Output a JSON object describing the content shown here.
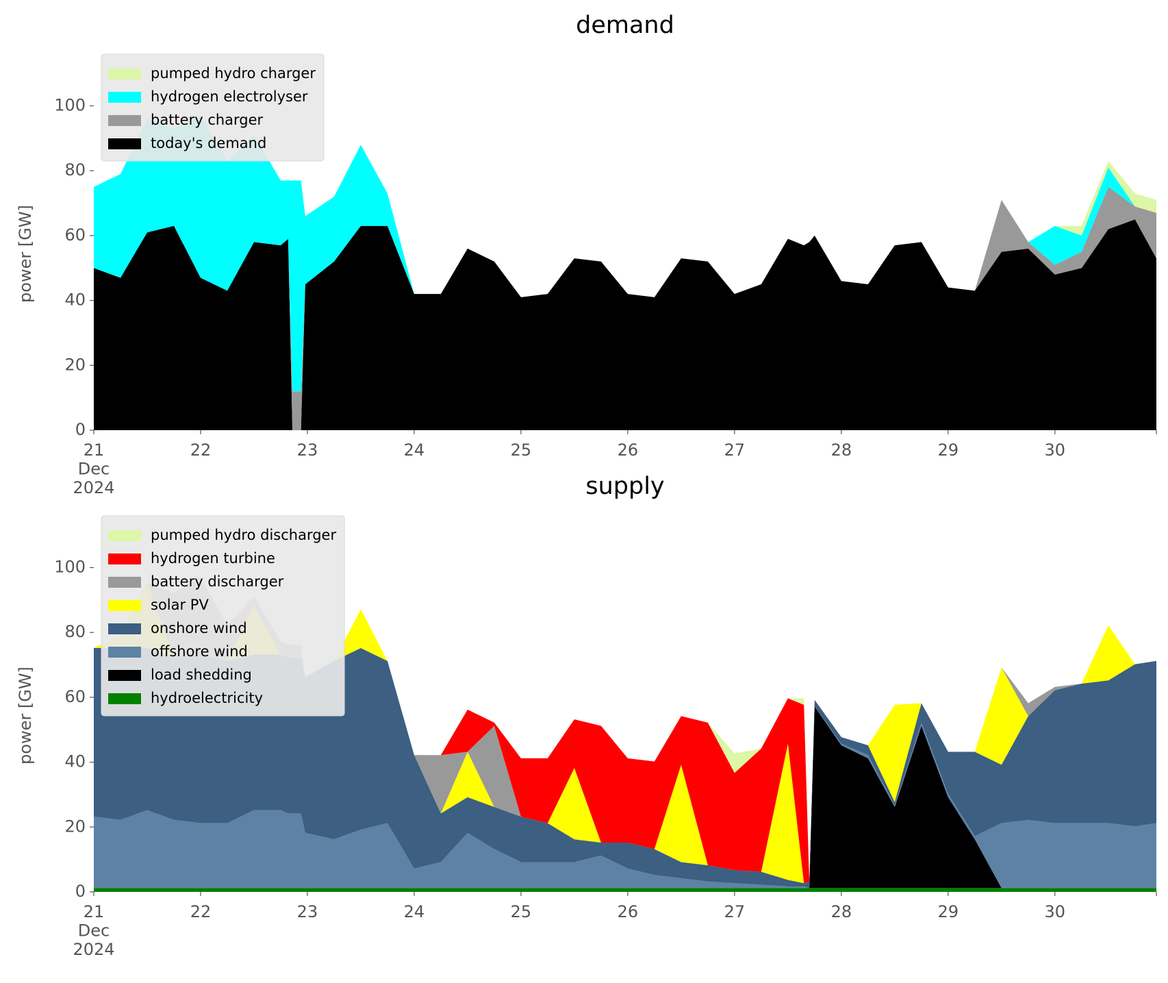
{
  "chart_data": [
    {
      "type": "area",
      "stacked": true,
      "title": "demand",
      "ylabel": "power [GW]",
      "legend": "upper left",
      "x": [
        21,
        21.25,
        21.5,
        21.75,
        22,
        22.25,
        22.5,
        22.75,
        22.82,
        22.86,
        22.94,
        22.98,
        23.25,
        23.5,
        23.75,
        24,
        24.25,
        24.5,
        24.75,
        25,
        25.25,
        25.5,
        25.75,
        26,
        26.25,
        26.5,
        26.75,
        27,
        27.25,
        27.5,
        27.65,
        27.7,
        27.75,
        28,
        28.25,
        28.5,
        28.75,
        29,
        29.25,
        29.5,
        29.75,
        30,
        30.25,
        30.5,
        30.75,
        30.95
      ],
      "xlim": [
        21,
        30.95
      ],
      "ylim": [
        0,
        113
      ],
      "xticks": [
        {
          "value": 21,
          "label": "21\nDec\n2024"
        },
        22,
        23,
        24,
        25,
        26,
        27,
        28,
        29,
        30
      ],
      "yticks": [
        0,
        20,
        40,
        60,
        80,
        100
      ],
      "series": [
        {
          "name": "pumped hydro charger",
          "color": "#dcf7a6",
          "values": [
            0,
            0,
            0,
            0,
            0,
            0,
            0,
            0,
            0,
            0,
            0,
            0,
            0,
            0,
            0,
            0,
            0,
            0,
            0,
            0,
            0,
            0,
            0,
            0,
            0,
            0,
            0,
            0,
            0,
            0,
            0,
            0,
            0,
            0,
            0,
            0,
            0,
            0,
            0,
            0,
            0,
            0,
            3,
            2,
            4,
            4
          ]
        },
        {
          "name": "hydrogen electrolyser",
          "color": "#00ffff",
          "values": [
            25,
            32,
            35,
            30,
            50,
            40,
            33,
            20,
            18,
            65,
            65,
            21,
            20,
            25,
            10,
            0,
            0,
            0,
            0,
            0,
            0,
            0,
            0,
            0,
            0,
            0,
            0,
            0,
            0,
            0,
            0,
            0,
            0,
            0,
            0,
            0,
            0,
            0,
            0,
            0,
            0,
            12,
            5,
            6,
            0,
            0
          ]
        },
        {
          "name": "battery charger",
          "color": "#999999",
          "values": [
            0,
            0,
            0,
            0,
            0,
            0,
            0,
            0,
            0,
            12,
            12,
            0,
            0,
            0,
            0,
            0,
            0,
            0,
            0,
            0,
            0,
            0,
            0,
            0,
            0,
            0,
            0,
            0,
            0,
            0,
            0,
            0,
            0,
            0,
            0,
            0,
            0,
            0,
            0,
            16,
            2,
            3,
            5,
            13,
            4,
            14
          ]
        },
        {
          "name": "today's demand",
          "color": "#000000",
          "values": [
            50,
            47,
            61,
            63,
            47,
            43,
            58,
            57,
            59,
            0,
            0,
            45,
            52,
            63,
            63,
            42,
            42,
            56,
            52,
            41,
            42,
            53,
            52,
            42,
            41,
            53,
            52,
            42,
            45,
            59,
            57,
            58,
            60,
            46,
            45,
            57,
            58,
            44,
            43,
            55,
            56,
            48,
            50,
            62,
            65,
            53
          ]
        }
      ]
    },
    {
      "type": "area",
      "stacked": true,
      "title": "supply",
      "ylabel": "power [GW]",
      "legend": "upper left",
      "x": [
        21,
        21.25,
        21.5,
        21.75,
        22,
        22.25,
        22.5,
        22.75,
        22.82,
        22.86,
        22.94,
        22.98,
        23.25,
        23.5,
        23.75,
        24,
        24.25,
        24.5,
        24.75,
        25,
        25.25,
        25.5,
        25.75,
        26,
        26.25,
        26.5,
        26.75,
        27,
        27.25,
        27.5,
        27.65,
        27.7,
        27.75,
        28,
        28.25,
        28.5,
        28.75,
        29,
        29.25,
        29.5,
        29.75,
        30,
        30.25,
        30.5,
        30.75,
        30.95
      ],
      "xlim": [
        21,
        30.95
      ],
      "ylim": [
        0,
        113
      ],
      "xticks": [
        {
          "value": 21,
          "label": "21\nDec\n2024"
        },
        22,
        23,
        24,
        25,
        26,
        27,
        28,
        29,
        30
      ],
      "yticks": [
        0,
        20,
        40,
        60,
        80,
        100
      ],
      "series": [
        {
          "name": "pumped hydro discharger",
          "color": "#dcf7a6",
          "values": [
            0,
            0,
            1,
            0,
            0,
            0,
            0,
            0,
            0,
            0,
            0,
            0,
            0,
            0,
            0,
            0,
            0,
            0,
            0,
            0,
            0,
            0,
            0,
            0,
            0,
            0,
            0,
            6,
            0,
            0,
            2,
            0,
            0,
            0,
            0,
            0,
            0,
            0,
            0,
            0,
            0,
            0,
            0,
            0,
            0,
            0
          ]
        },
        {
          "name": "hydrogen turbine",
          "color": "#ff0000",
          "values": [
            0,
            0,
            0,
            0,
            0,
            0,
            0,
            0,
            0,
            0,
            0,
            0,
            0,
            0,
            0,
            0,
            0,
            13,
            1,
            18,
            20,
            15,
            36,
            26,
            27,
            15,
            44,
            30,
            38,
            14,
            55,
            0,
            0,
            0,
            0,
            0,
            0,
            0,
            0,
            0,
            0,
            0,
            0,
            0,
            0,
            0
          ]
        },
        {
          "name": "battery discharger",
          "color": "#999999",
          "values": [
            0,
            0,
            0,
            20,
            24,
            11,
            3,
            4,
            4,
            4,
            4,
            0,
            0,
            0,
            0,
            0,
            18,
            0,
            25,
            0,
            0,
            0,
            0,
            0,
            0,
            0,
            0,
            0,
            0,
            0,
            0,
            0,
            0,
            0,
            0,
            0,
            0,
            0,
            0,
            0,
            4,
            1,
            0,
            0,
            0,
            0
          ]
        },
        {
          "name": "solar PV",
          "color": "#ffff00",
          "values": [
            0,
            4,
            20,
            0,
            0,
            0,
            15,
            0,
            0,
            0,
            0,
            0,
            0,
            12,
            0,
            0,
            0,
            14,
            0,
            0,
            0,
            22,
            0,
            0,
            0,
            30,
            0,
            0,
            0,
            42,
            0,
            0,
            0,
            0,
            0,
            30,
            0,
            0,
            0,
            30,
            0,
            0,
            0,
            17,
            0,
            0
          ]
        },
        {
          "name": "onshore wind",
          "color": "#3c5f82",
          "values": [
            52,
            53,
            50,
            50,
            52,
            50,
            48,
            48,
            48,
            48,
            48,
            48,
            55,
            56,
            50,
            35,
            15,
            11,
            13,
            14,
            12,
            7,
            4,
            8,
            8,
            5,
            5,
            4,
            4,
            2,
            1,
            2,
            2,
            2,
            3,
            1,
            6,
            13,
            26,
            18,
            32,
            41,
            43,
            44,
            50,
            50
          ]
        },
        {
          "name": "offshore wind",
          "color": "#5d82a5",
          "values": [
            22,
            21,
            24,
            21,
            20,
            20,
            24,
            24,
            23,
            23,
            23,
            17,
            15,
            18,
            20,
            6,
            8,
            17,
            12,
            8,
            8,
            8,
            10,
            6,
            4,
            3,
            2,
            1.5,
            1,
            0.5,
            0.5,
            0,
            0,
            0.5,
            1,
            0.5,
            1,
            1,
            1,
            20,
            21,
            20,
            20,
            20,
            19,
            20
          ]
        },
        {
          "name": "load shedding",
          "color": "#000000",
          "values": [
            0,
            0,
            0,
            0,
            0,
            0,
            0,
            0,
            0,
            0,
            0,
            0,
            0,
            0,
            0,
            0,
            0,
            0,
            0,
            0,
            0,
            0,
            0,
            0,
            0,
            0,
            0,
            0,
            0,
            0,
            0,
            0,
            56,
            44,
            40,
            25,
            50,
            28,
            15,
            0,
            0,
            0,
            0,
            0,
            0,
            0
          ]
        },
        {
          "name": "hydroelectricity",
          "color": "#008000",
          "values": [
            1.2,
            1.2,
            1.2,
            1.2,
            1.2,
            1.2,
            1.2,
            1.2,
            1.2,
            1.2,
            1.2,
            1.2,
            1.2,
            1.2,
            1.2,
            1.2,
            1.2,
            1.2,
            1.2,
            1.2,
            1.2,
            1.2,
            1.2,
            1.2,
            1.2,
            1.2,
            1.2,
            1.2,
            1.2,
            1.2,
            1.2,
            1.2,
            1.2,
            1.2,
            1.2,
            1.2,
            1.2,
            1.2,
            1.2,
            1.2,
            1.2,
            1.2,
            1.2,
            1.2,
            1.2,
            1.2
          ]
        }
      ]
    }
  ]
}
